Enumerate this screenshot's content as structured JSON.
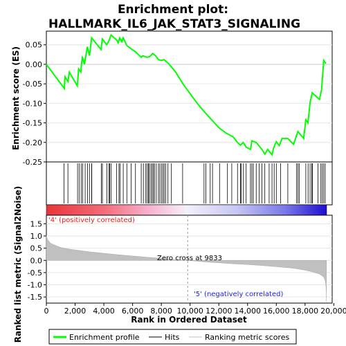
{
  "chart_data": {
    "type": "line",
    "title_line1": "Enrichment plot:",
    "title_line2": "HALLMARK_IL6_JAK_STAT3_SIGNALING",
    "es_panel": {
      "ylabel": "Enrichment score (ES)",
      "ylim": [
        -0.25,
        0.085
      ],
      "yticks": [
        -0.25,
        -0.2,
        -0.15,
        -0.1,
        -0.05,
        0.0,
        0.05
      ],
      "ytick_labels": [
        "-0.25",
        "-0.20",
        "-0.15",
        "-0.10",
        "-0.05",
        "0.00",
        "0.05"
      ],
      "line_color": "#00ff00",
      "curve": [
        [
          0,
          0.0
        ],
        [
          1250,
          -0.062
        ],
        [
          1300,
          -0.032
        ],
        [
          1500,
          -0.044
        ],
        [
          1600,
          -0.02
        ],
        [
          2150,
          -0.055
        ],
        [
          2250,
          -0.012
        ],
        [
          2400,
          -0.02
        ],
        [
          2500,
          0.02
        ],
        [
          2650,
          0.0
        ],
        [
          2850,
          0.045
        ],
        [
          3000,
          0.022
        ],
        [
          3150,
          0.068
        ],
        [
          3800,
          0.038
        ],
        [
          3900,
          0.065
        ],
        [
          4200,
          0.05
        ],
        [
          4350,
          0.06
        ],
        [
          4500,
          0.075
        ],
        [
          4900,
          0.062
        ],
        [
          5000,
          0.055
        ],
        [
          5100,
          0.068
        ],
        [
          5250,
          0.058
        ],
        [
          5350,
          0.068
        ],
        [
          5600,
          0.048
        ],
        [
          5900,
          0.04
        ],
        [
          6200,
          0.032
        ],
        [
          6600,
          0.018
        ],
        [
          6700,
          0.022
        ],
        [
          7000,
          0.018
        ],
        [
          7200,
          0.02
        ],
        [
          7400,
          0.028
        ],
        [
          7600,
          0.022
        ],
        [
          7800,
          0.012
        ],
        [
          8000,
          0.01
        ],
        [
          8200,
          0.012
        ],
        [
          8500,
          0.002
        ],
        [
          9000,
          -0.02
        ],
        [
          9500,
          -0.05
        ],
        [
          10000,
          -0.075
        ],
        [
          10500,
          -0.1
        ],
        [
          11000,
          -0.122
        ],
        [
          11500,
          -0.142
        ],
        [
          12000,
          -0.162
        ],
        [
          12500,
          -0.176
        ],
        [
          13000,
          -0.186
        ],
        [
          13300,
          -0.2
        ],
        [
          13500,
          -0.207
        ],
        [
          13700,
          -0.2
        ],
        [
          13900,
          -0.212
        ],
        [
          14200,
          -0.218
        ],
        [
          14300,
          -0.196
        ],
        [
          14600,
          -0.2
        ],
        [
          15000,
          -0.218
        ],
        [
          15200,
          -0.23
        ],
        [
          15400,
          -0.218
        ],
        [
          15700,
          -0.232
        ],
        [
          15800,
          -0.215
        ],
        [
          16000,
          -0.198
        ],
        [
          16200,
          -0.208
        ],
        [
          16400,
          -0.19
        ],
        [
          16800,
          -0.19
        ],
        [
          17200,
          -0.205
        ],
        [
          17500,
          -0.172
        ],
        [
          17900,
          -0.19
        ],
        [
          18050,
          -0.142
        ],
        [
          18200,
          -0.15
        ],
        [
          18350,
          -0.098
        ],
        [
          18500,
          -0.073
        ],
        [
          19000,
          -0.09
        ],
        [
          19150,
          -0.065
        ],
        [
          19300,
          0.01
        ],
        [
          19450,
          0.002
        ]
      ]
    },
    "hits": [
      1230,
      1500,
      2170,
      2280,
      2420,
      2520,
      2700,
      2860,
      3000,
      3150,
      3160,
      3820,
      3900,
      4210,
      4360,
      4400,
      4500,
      4880,
      5050,
      5120,
      5350,
      5600,
      5900,
      6200,
      6600,
      6750,
      6900,
      7000,
      7100,
      7160,
      7270,
      7360,
      7450,
      7520,
      7650,
      7800,
      7900,
      8010,
      8120,
      8200,
      8300,
      8460,
      8700,
      9480,
      10970,
      11100,
      11400,
      11560,
      12050,
      12600,
      12900,
      13300,
      13500,
      13560,
      13710,
      13900,
      14200,
      14300,
      14400,
      14600,
      14800,
      15000,
      15200,
      15500,
      15700,
      15850,
      16000,
      16300,
      16800,
      17400,
      17500,
      17600,
      18050,
      18210,
      18350,
      18460,
      18520,
      18900,
      19100,
      19200,
      19300,
      19400
    ],
    "rank_panel": {
      "ylabel": "Ranked list metric (Signal2Noise)",
      "ylim": [
        -1.75,
        1.85
      ],
      "yticks": [
        -1.5,
        -1.0,
        -0.5,
        0.0,
        0.5,
        1.0,
        1.5
      ],
      "ytick_labels": [
        "-1.5",
        "-1.0",
        "-0.5",
        "0.0",
        "0.5",
        "1.0",
        "1.5"
      ],
      "fill_color": "#c0c0c0",
      "metric": [
        [
          0,
          1.0
        ],
        [
          100,
          0.84
        ],
        [
          300,
          0.7
        ],
        [
          600,
          0.62
        ],
        [
          1000,
          0.53
        ],
        [
          1500,
          0.47
        ],
        [
          2000,
          0.43
        ],
        [
          3000,
          0.35
        ],
        [
          4000,
          0.29
        ],
        [
          5000,
          0.23
        ],
        [
          6000,
          0.18
        ],
        [
          7000,
          0.13
        ],
        [
          8000,
          0.08
        ],
        [
          9000,
          0.03
        ],
        [
          9833,
          0.0
        ],
        [
          11000,
          -0.06
        ],
        [
          12000,
          -0.1
        ],
        [
          13000,
          -0.14
        ],
        [
          14000,
          -0.17
        ],
        [
          15000,
          -0.21
        ],
        [
          16000,
          -0.26
        ],
        [
          17000,
          -0.31
        ],
        [
          17500,
          -0.35
        ],
        [
          18000,
          -0.4
        ],
        [
          18500,
          -0.47
        ],
        [
          19000,
          -0.56
        ],
        [
          19300,
          -0.68
        ],
        [
          19420,
          -0.85
        ],
        [
          19470,
          -1.2
        ],
        [
          19490,
          -1.7
        ]
      ],
      "zero_cross_label": "Zero cross at 9833",
      "zero_cross": 9833,
      "pos_label": "'4' (positively correlated)",
      "neg_label": "'5' (negatively correlated)",
      "pos_color": "#ff0000",
      "neg_color": "#0000ff"
    },
    "xlabel": "Rank in Ordered Dataset",
    "xlim": [
      0,
      19500
    ],
    "xticks": [
      0,
      2000,
      4000,
      6000,
      8000,
      10000,
      12000,
      14000,
      16000,
      18000,
      20000
    ],
    "xtick_labels": [
      "0",
      "2,000",
      "4,000",
      "6,000",
      "8,000",
      "10,000",
      "12,000",
      "14,000",
      "16,000",
      "18,000",
      "20,000"
    ],
    "legend": [
      {
        "label": "Enrichment profile",
        "color": "#00ff00",
        "kind": "thick"
      },
      {
        "label": "Hits",
        "color": "#000000",
        "kind": "thin"
      },
      {
        "label": "Ranking metric scores",
        "color": "#c0c0c0",
        "kind": "thin"
      }
    ]
  }
}
